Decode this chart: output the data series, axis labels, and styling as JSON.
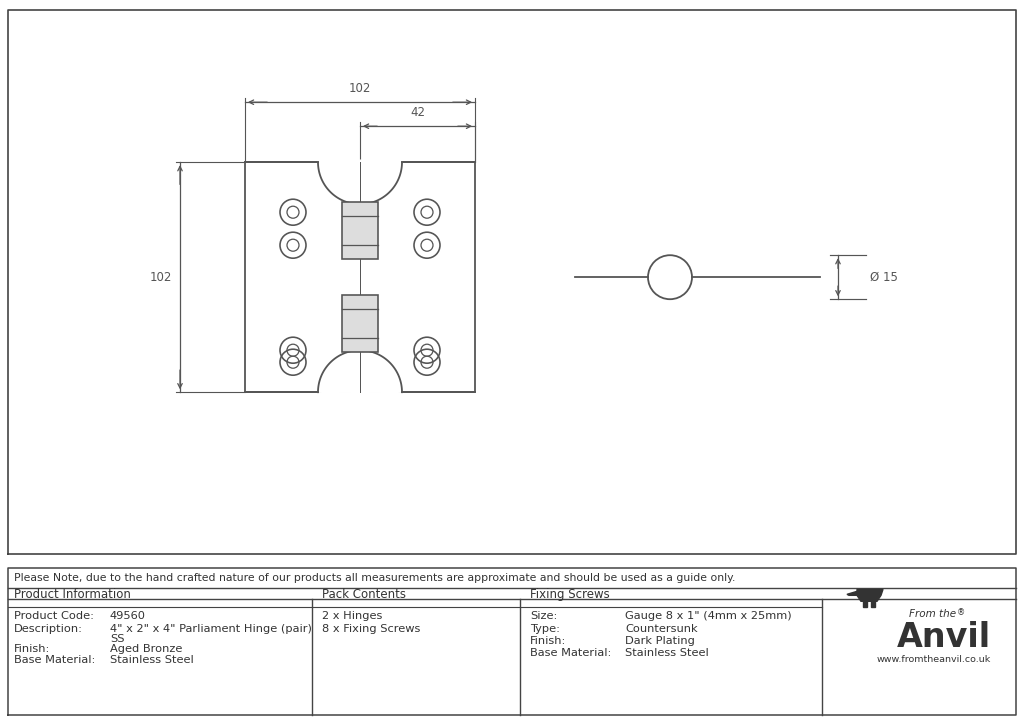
{
  "bg_color": "#ffffff",
  "line_color": "#555555",
  "table_line_color": "#444444",
  "note_text": "Please Note, due to the hand crafted nature of our products all measurements are approximate and should be used as a guide only.",
  "product_info": {
    "header": "Product Information",
    "rows": [
      [
        "Product Code:",
        "49560"
      ],
      [
        "Description:",
        "4\" x 2\" x 4\" Parliament Hinge (pair)"
      ],
      [
        "",
        "SS"
      ],
      [
        "Finish:",
        "Aged Bronze"
      ],
      [
        "Base Material:",
        "Stainless Steel"
      ]
    ]
  },
  "pack_contents": {
    "header": "Pack Contents",
    "rows": [
      [
        "2 x Hinges"
      ],
      [
        "8 x Fixing Screws"
      ]
    ]
  },
  "fixing_screws": {
    "header": "Fixing Screws",
    "rows": [
      [
        "Size:",
        "Gauge 8 x 1\" (4mm x 25mm)"
      ],
      [
        "Type:",
        "Countersunk"
      ],
      [
        "Finish:",
        "Dark Plating"
      ],
      [
        "Base Material:",
        "Stainless Steel"
      ]
    ]
  },
  "dim_102_width": "102",
  "dim_42_width": "42",
  "dim_102_height": "102",
  "dim_15": "Ø 15"
}
